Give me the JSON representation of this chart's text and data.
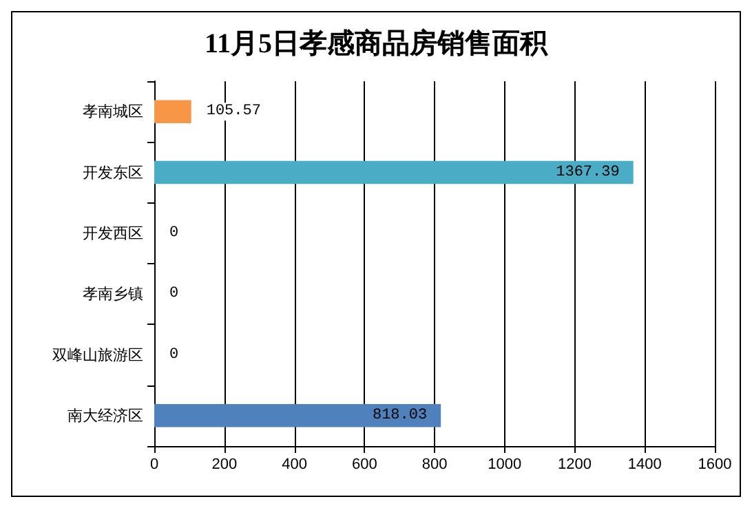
{
  "chart_data": {
    "type": "bar",
    "orientation": "horizontal",
    "title": "11月5日孝感商品房销售面积",
    "categories": [
      "孝南城区",
      "开发东区",
      "开发西区",
      "孝南乡镇",
      "双峰山旅游区",
      "南大经济区"
    ],
    "values": [
      105.57,
      1367.39,
      0,
      0,
      0,
      818.03
    ],
    "colors": [
      "#f79646",
      "#4bacc6",
      "#4bacc6",
      "#4bacc6",
      "#4bacc6",
      "#4f81bd"
    ],
    "xlim": [
      0,
      1600
    ],
    "xticks": [
      0,
      200,
      400,
      600,
      800,
      1000,
      1200,
      1400,
      1600
    ],
    "grid": "x",
    "data_labels": true
  }
}
